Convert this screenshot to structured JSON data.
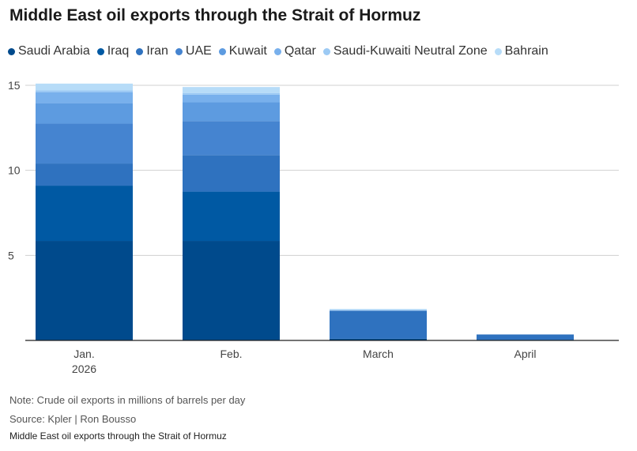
{
  "chart_data": {
    "type": "bar",
    "stacked": true,
    "title": "Middle East oil exports through the Strait of Hormuz",
    "xlabel": "",
    "ylabel": "",
    "ylim": [
      0,
      15
    ],
    "yticks": [
      5,
      10,
      15
    ],
    "categories": [
      "Jan.\n2026",
      "Feb.",
      "March",
      "April"
    ],
    "category_labels": [
      [
        "Jan.",
        "2026"
      ],
      [
        "Feb."
      ],
      [
        "March"
      ],
      [
        "April"
      ]
    ],
    "series": [
      {
        "name": "Saudi Arabia",
        "color": "#004a8c",
        "values": [
          5.85,
          5.85,
          0.1,
          0
        ]
      },
      {
        "name": "Iraq",
        "color": "#0059a3",
        "values": [
          3.25,
          2.9,
          0,
          0
        ]
      },
      {
        "name": "Iran",
        "color": "#2f72bf",
        "values": [
          1.3,
          2.15,
          1.65,
          0.35
        ]
      },
      {
        "name": "UAE",
        "color": "#4584d0",
        "values": [
          2.35,
          2.0,
          0,
          0
        ]
      },
      {
        "name": "Kuwait",
        "color": "#5d9be0",
        "values": [
          1.2,
          1.1,
          0,
          0
        ]
      },
      {
        "name": "Qatar",
        "color": "#78b0ec",
        "values": [
          0.65,
          0.45,
          0,
          0
        ]
      },
      {
        "name": "Saudi-Kuwaiti Neutral Zone",
        "color": "#9ccaf4",
        "values": [
          0.1,
          0.1,
          0.05,
          0
        ]
      },
      {
        "name": "Bahrain",
        "color": "#b7dcf8",
        "values": [
          0.4,
          0.35,
          0.05,
          0
        ]
      }
    ],
    "grid": true,
    "legend_position": "top"
  },
  "footer": {
    "note": "Note: Crude oil exports in millions of barrels per day",
    "source": "Source: Kpler | Ron Bousso",
    "caption": "Middle East oil exports through the Strait of Hormuz"
  }
}
